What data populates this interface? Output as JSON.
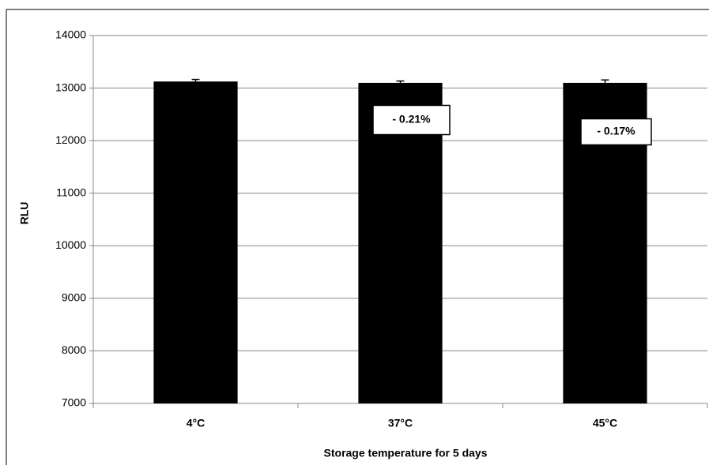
{
  "chart_data": {
    "type": "bar",
    "categories": [
      "4°C",
      "37°C",
      "45°C"
    ],
    "values": [
      13125,
      13100,
      13100
    ],
    "errors": [
      40,
      35,
      55
    ],
    "color": "#000000",
    "x_label": "Storage temperature for 5 days",
    "y_label": "RLU",
    "ylim": [
      7000,
      14000
    ],
    "yticks": [
      7000,
      8000,
      9000,
      10000,
      11000,
      12000,
      13000,
      14000
    ],
    "grid": true,
    "annotations": [
      "- 0.21%",
      "- 0.17%"
    ]
  }
}
